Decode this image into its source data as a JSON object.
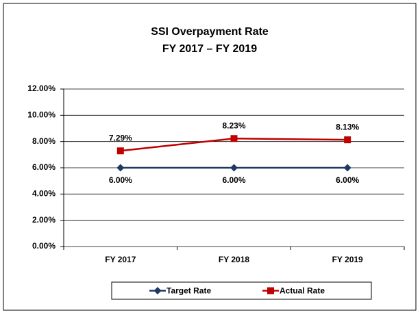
{
  "chart_data": {
    "type": "line",
    "title": "SSI Overpayment Rate",
    "subtitle": "FY 2017 – FY 2019",
    "categories": [
      "FY 2017",
      "FY 2018",
      "FY 2019"
    ],
    "series": [
      {
        "name": "Target Rate",
        "color": "#1f3864",
        "marker": "diamond",
        "values": [
          6,
          6,
          6
        ],
        "value_labels": [
          "6.00%",
          "6.00%",
          "6.00%"
        ]
      },
      {
        "name": "Actual Rate",
        "color": "#c00000",
        "marker": "square",
        "values": [
          7.29,
          8.23,
          8.13
        ],
        "value_labels": [
          "7.29%",
          "8.23%",
          "8.13%"
        ]
      }
    ],
    "ylim": [
      0,
      12
    ],
    "yticks": [
      {
        "value": 0,
        "label": "0.00%"
      },
      {
        "value": 2,
        "label": "2.00%"
      },
      {
        "value": 4,
        "label": "4.00%"
      },
      {
        "value": 6,
        "label": "6.00%"
      },
      {
        "value": 8,
        "label": "8.00%"
      },
      {
        "value": 10,
        "label": "10.00%"
      },
      {
        "value": 12,
        "label": "12.00%"
      }
    ],
    "grid": true,
    "legend": "bottom"
  }
}
